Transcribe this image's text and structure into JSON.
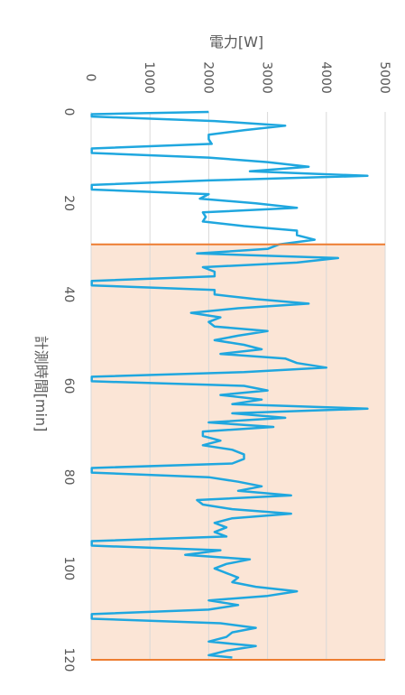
{
  "chart_data": {
    "type": "line",
    "orientation": "rotated-90-clockwise",
    "xlabel": "計測時間[min]",
    "ylabel": "電力[W]",
    "xlim": [
      0,
      120
    ],
    "ylim": [
      0,
      5000
    ],
    "x_ticks": [
      "0",
      "20",
      "40",
      "60",
      "80",
      "100",
      "120"
    ],
    "y_ticks": [
      "0",
      "1000",
      "2000",
      "3000",
      "4000",
      "5000"
    ],
    "grid": true,
    "legend": "none",
    "highlight_region": {
      "x_start": 29,
      "x_end": 120,
      "fill": "#fbe5d6",
      "edge_color": "#ed7d31"
    },
    "colors": {
      "series": "#1fa7df",
      "grid": "#d9d9d9",
      "highlight_edge": "#ed7d31",
      "text": "#595959"
    },
    "series": [
      {
        "x": [
          0,
          0.5,
          1,
          2,
          3,
          4,
          5,
          6,
          7,
          8,
          9,
          10,
          11,
          12,
          13,
          14,
          15,
          16,
          17,
          18,
          19,
          20,
          21,
          22,
          23,
          24,
          25,
          26,
          27,
          28,
          29,
          30,
          31,
          32,
          33,
          34,
          35,
          36,
          37,
          38,
          39,
          40,
          41,
          42,
          43,
          44,
          45,
          46,
          47,
          48,
          49,
          50,
          51,
          52,
          53,
          54,
          55,
          56,
          57,
          58,
          59,
          60,
          61,
          62,
          63,
          64,
          65,
          66,
          67,
          68,
          69,
          70,
          71,
          72,
          73,
          74,
          75,
          76,
          77,
          78,
          79,
          80,
          81,
          82,
          83,
          84,
          85,
          86,
          87,
          88,
          89,
          90,
          91,
          92,
          93,
          94,
          95,
          96,
          97,
          98,
          99,
          100,
          101,
          102,
          103,
          104,
          105,
          106,
          107,
          108,
          109,
          110,
          111,
          112,
          113,
          114,
          115,
          116,
          117,
          118,
          119,
          119.5
        ],
        "values": [
          2000,
          10,
          10,
          2100,
          3300,
          2600,
          2000,
          2000,
          2050,
          10,
          10,
          2000,
          3000,
          3700,
          2700,
          4700,
          2000,
          10,
          10,
          2000,
          1850,
          2800,
          3500,
          1900,
          1950,
          1900,
          2600,
          3500,
          3500,
          3800,
          3200,
          3000,
          1800,
          4200,
          3500,
          1900,
          2100,
          2100,
          10,
          10,
          2100,
          2100,
          2800,
          3700,
          2500,
          1700,
          2200,
          2000,
          2100,
          3000,
          2500,
          2100,
          2600,
          2900,
          2200,
          3300,
          3500,
          4000,
          2600,
          10,
          10,
          2600,
          3000,
          2200,
          2900,
          2400,
          4700,
          2400,
          3300,
          2000,
          3100,
          1900,
          1900,
          2200,
          1900,
          2400,
          2600,
          2600,
          2400,
          10,
          10,
          2000,
          2500,
          2900,
          2500,
          3400,
          1800,
          1900,
          2400,
          3400,
          2400,
          2100,
          2300,
          2100,
          2300,
          10,
          10,
          2200,
          1600,
          2700,
          2300,
          2100,
          2300,
          2500,
          2400,
          2800,
          3500,
          3000,
          2000,
          2500,
          2000,
          10,
          10,
          2200,
          2800,
          2400,
          2300,
          2000,
          2800,
          2300,
          2000,
          2400
        ]
      }
    ]
  }
}
